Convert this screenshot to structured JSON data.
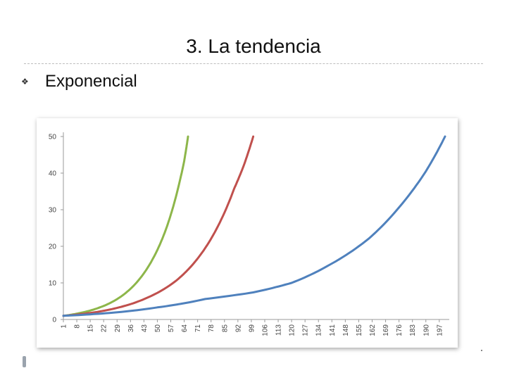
{
  "slide": {
    "title": "3. La tendencia",
    "bullet_icon": "square-bullet-icon",
    "bullet_text": "Exponencial"
  },
  "chart_data": {
    "type": "line",
    "title": "",
    "xlabel": "",
    "ylabel": "",
    "ylim": [
      0,
      50
    ],
    "yticks": [
      0,
      10,
      20,
      30,
      40,
      50
    ],
    "xlim": [
      1,
      200
    ],
    "xticks": [
      1,
      8,
      15,
      22,
      29,
      36,
      43,
      50,
      57,
      64,
      71,
      78,
      85,
      92,
      99,
      106,
      113,
      120,
      127,
      134,
      141,
      148,
      155,
      162,
      169,
      176,
      183,
      190,
      197
    ],
    "grid": false,
    "legend": "none",
    "series": [
      {
        "color": "#8db64a",
        "x": [
          1,
          10,
          20,
          30,
          40,
          50,
          55,
          60,
          64,
          66
        ],
        "y": [
          1,
          1.81,
          3.3,
          5.9,
          10.6,
          19.0,
          25.4,
          34.2,
          43.3,
          50
        ]
      },
      {
        "color": "#c0504d",
        "x": [
          1,
          15,
          30,
          45,
          60,
          70,
          80,
          90,
          95,
          100
        ],
        "y": [
          1,
          1.79,
          3.3,
          6.0,
          10.7,
          16.0,
          23.9,
          35.7,
          42.0,
          50
        ]
      },
      {
        "color": "#4f81bd",
        "x": [
          1,
          25,
          50,
          75,
          100,
          120,
          140,
          160,
          175,
          190,
          200
        ],
        "y": [
          1,
          1.79,
          3.3,
          5.6,
          7.4,
          10.0,
          15.0,
          22.0,
          30.0,
          40.5,
          50
        ]
      }
    ]
  }
}
